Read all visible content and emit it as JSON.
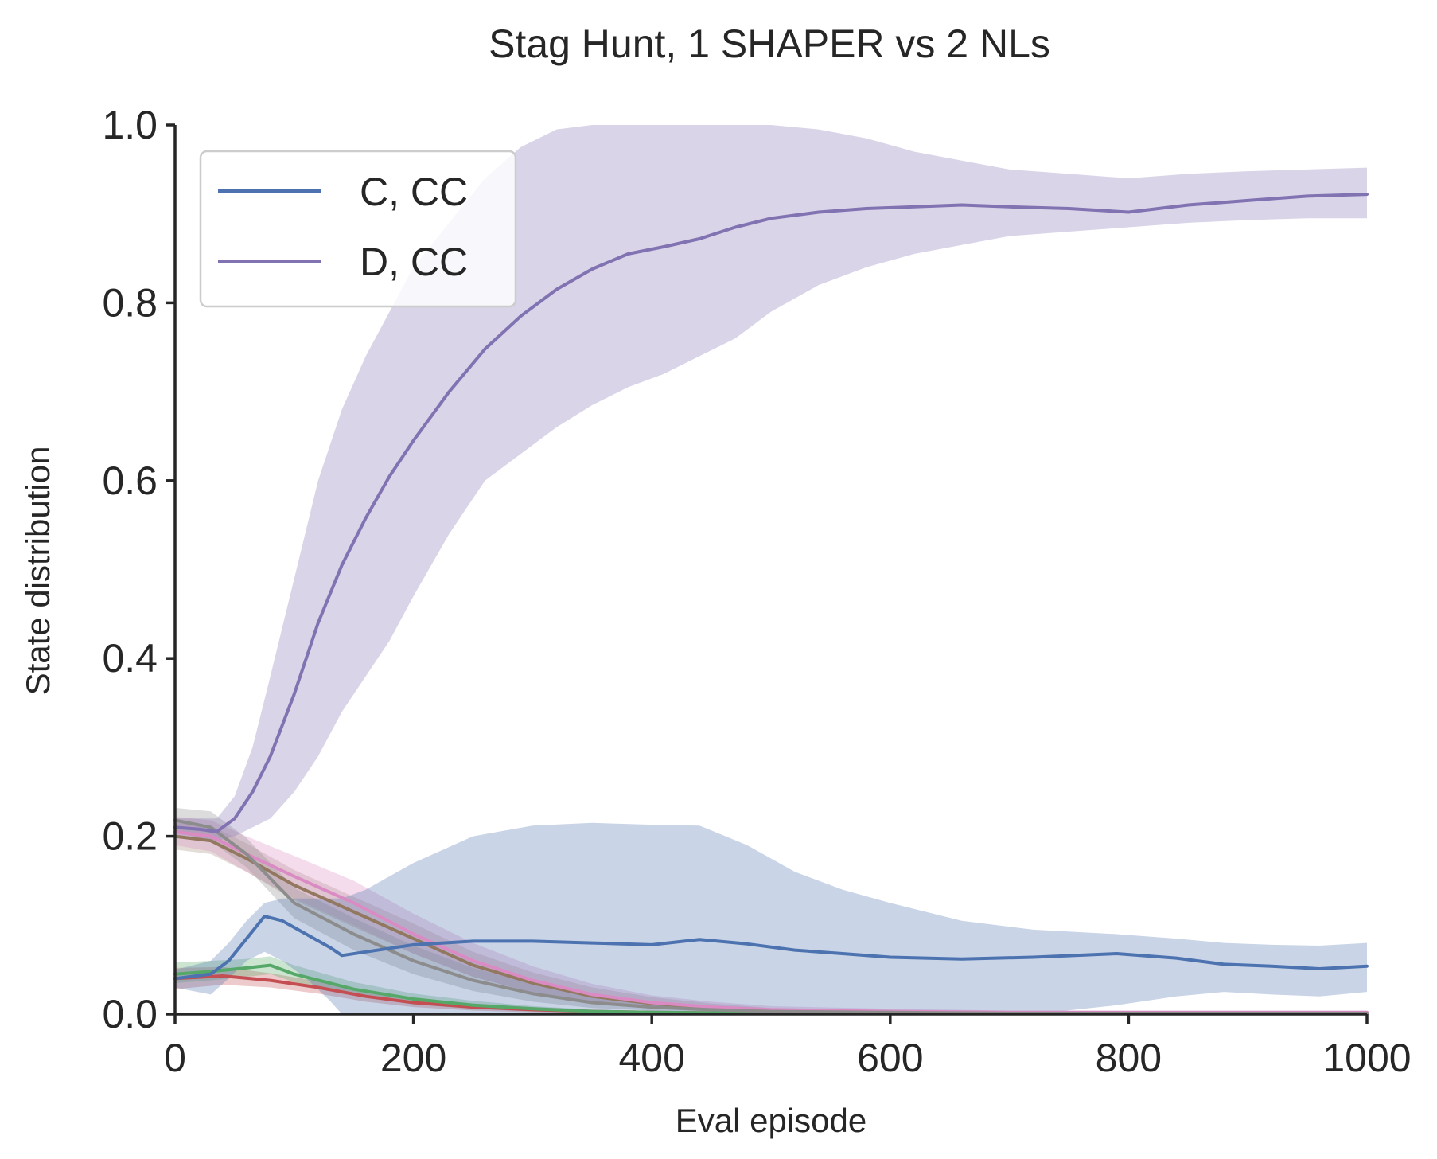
{
  "chart_data": {
    "type": "line",
    "title": "Stag Hunt, 1 SHAPER vs 2 NLs",
    "xlabel": "Eval episode",
    "ylabel": "State distribution",
    "xlim": [
      0,
      1000
    ],
    "ylim": [
      0,
      1.0
    ],
    "xticks": [
      "0",
      "200",
      "400",
      "600",
      "800",
      "1000"
    ],
    "yticks": [
      "0.0",
      "0.2",
      "0.4",
      "0.6",
      "0.8",
      "1.0"
    ],
    "grid": false,
    "legend": {
      "placement": "top-left",
      "entries": [
        {
          "label": "C, CC",
          "color": "#4c72b0"
        },
        {
          "label": "D, CC",
          "color": "#8172b2"
        }
      ]
    },
    "series": [
      {
        "name": "C, CC",
        "color": "#4c72b0",
        "band_opacity": 0.3,
        "x": [
          0,
          30,
          45,
          60,
          75,
          90,
          110,
          130,
          140,
          160,
          200,
          250,
          300,
          350,
          400,
          440,
          480,
          520,
          560,
          600,
          660,
          720,
          790,
          840,
          880,
          920,
          960,
          1000
        ],
        "y": [
          0.04,
          0.045,
          0.06,
          0.085,
          0.11,
          0.105,
          0.09,
          0.075,
          0.066,
          0.07,
          0.078,
          0.082,
          0.082,
          0.08,
          0.078,
          0.084,
          0.079,
          0.072,
          0.068,
          0.064,
          0.062,
          0.064,
          0.068,
          0.063,
          0.056,
          0.054,
          0.051,
          0.054
        ],
        "lower": [
          0.03,
          0.022,
          0.04,
          0.06,
          0.07,
          0.06,
          0.04,
          0.015,
          0.0,
          0.0,
          0.0,
          0.0,
          0.0,
          0.0,
          0.0,
          0.0,
          0.0,
          0.0,
          0.0,
          0.0,
          0.0,
          0.0,
          0.01,
          0.02,
          0.025,
          0.022,
          0.02,
          0.025
        ],
        "upper": [
          0.05,
          0.06,
          0.08,
          0.105,
          0.125,
          0.13,
          0.13,
          0.13,
          0.13,
          0.14,
          0.17,
          0.2,
          0.212,
          0.215,
          0.213,
          0.212,
          0.19,
          0.16,
          0.14,
          0.125,
          0.105,
          0.095,
          0.09,
          0.085,
          0.08,
          0.078,
          0.077,
          0.08
        ]
      },
      {
        "name": "D, CC",
        "color": "#8172b2",
        "band_opacity": 0.3,
        "x": [
          0,
          20,
          35,
          50,
          65,
          80,
          100,
          120,
          140,
          160,
          180,
          200,
          230,
          260,
          290,
          320,
          350,
          380,
          410,
          440,
          470,
          500,
          540,
          580,
          620,
          660,
          700,
          750,
          800,
          850,
          900,
          950,
          1000
        ],
        "y": [
          0.21,
          0.208,
          0.205,
          0.22,
          0.25,
          0.29,
          0.36,
          0.44,
          0.505,
          0.558,
          0.605,
          0.645,
          0.7,
          0.748,
          0.785,
          0.815,
          0.838,
          0.855,
          0.863,
          0.872,
          0.885,
          0.895,
          0.902,
          0.906,
          0.908,
          0.91,
          0.908,
          0.906,
          0.902,
          0.91,
          0.915,
          0.92,
          0.922
        ],
        "lower": [
          0.2,
          0.195,
          0.195,
          0.2,
          0.21,
          0.22,
          0.25,
          0.29,
          0.34,
          0.38,
          0.42,
          0.47,
          0.54,
          0.6,
          0.63,
          0.66,
          0.685,
          0.705,
          0.72,
          0.74,
          0.76,
          0.79,
          0.82,
          0.84,
          0.855,
          0.865,
          0.875,
          0.88,
          0.885,
          0.89,
          0.893,
          0.895,
          0.895
        ],
        "upper": [
          0.22,
          0.22,
          0.22,
          0.245,
          0.3,
          0.38,
          0.49,
          0.6,
          0.68,
          0.74,
          0.79,
          0.84,
          0.89,
          0.94,
          0.975,
          0.995,
          1.0,
          1.0,
          1.0,
          1.0,
          1.0,
          1.0,
          0.995,
          0.985,
          0.97,
          0.96,
          0.95,
          0.945,
          0.94,
          0.945,
          0.948,
          0.95,
          0.952
        ]
      },
      {
        "color": "#937860",
        "band_opacity": 0.25,
        "x": [
          0,
          30,
          60,
          100,
          150,
          200,
          250,
          300,
          350,
          400,
          450,
          500,
          600,
          700,
          800,
          900,
          1000
        ],
        "y": [
          0.2,
          0.195,
          0.175,
          0.145,
          0.115,
          0.085,
          0.055,
          0.035,
          0.02,
          0.012,
          0.007,
          0.004,
          0.002,
          0.001,
          0.001,
          0.001,
          0.001
        ],
        "lower": [
          0.185,
          0.18,
          0.16,
          0.128,
          0.098,
          0.068,
          0.042,
          0.024,
          0.012,
          0.006,
          0.003,
          0.001,
          0.0,
          0.0,
          0.0,
          0.0,
          0.0
        ],
        "upper": [
          0.215,
          0.212,
          0.192,
          0.162,
          0.132,
          0.102,
          0.07,
          0.047,
          0.03,
          0.019,
          0.012,
          0.007,
          0.004,
          0.002,
          0.002,
          0.002,
          0.002
        ]
      },
      {
        "color": "#da8bc3",
        "band_opacity": 0.3,
        "x": [
          0,
          30,
          60,
          100,
          150,
          200,
          250,
          300,
          350,
          400,
          450,
          500,
          600,
          700,
          800,
          900,
          1000
        ],
        "y": [
          0.205,
          0.2,
          0.18,
          0.155,
          0.125,
          0.09,
          0.06,
          0.038,
          0.022,
          0.013,
          0.008,
          0.005,
          0.003,
          0.002,
          0.002,
          0.002,
          0.002
        ],
        "lower": [
          0.19,
          0.183,
          0.16,
          0.13,
          0.1,
          0.068,
          0.042,
          0.024,
          0.012,
          0.006,
          0.003,
          0.001,
          0.0,
          0.0,
          0.0,
          0.0,
          0.0
        ],
        "upper": [
          0.222,
          0.218,
          0.2,
          0.178,
          0.15,
          0.113,
          0.08,
          0.054,
          0.034,
          0.021,
          0.014,
          0.009,
          0.006,
          0.004,
          0.004,
          0.004,
          0.004
        ]
      },
      {
        "color": "#8c8c8c",
        "band_opacity": 0.3,
        "x": [
          0,
          30,
          60,
          100,
          150,
          200,
          250,
          300,
          350,
          400,
          450,
          500,
          600,
          700,
          800,
          900,
          1000
        ],
        "y": [
          0.218,
          0.21,
          0.18,
          0.125,
          0.09,
          0.06,
          0.038,
          0.023,
          0.013,
          0.008,
          0.005,
          0.003,
          0.002,
          0.001,
          0.001,
          0.001,
          0.001
        ],
        "lower": [
          0.205,
          0.195,
          0.165,
          0.108,
          0.072,
          0.045,
          0.026,
          0.014,
          0.007,
          0.004,
          0.002,
          0.001,
          0.0,
          0.0,
          0.0,
          0.0,
          0.0
        ],
        "upper": [
          0.232,
          0.228,
          0.198,
          0.142,
          0.108,
          0.077,
          0.052,
          0.034,
          0.02,
          0.013,
          0.008,
          0.005,
          0.003,
          0.002,
          0.002,
          0.002,
          0.002
        ]
      },
      {
        "color": "#55a868",
        "band_opacity": 0.3,
        "x": [
          0,
          30,
          60,
          80,
          100,
          150,
          200,
          250,
          300,
          350,
          400,
          500,
          600,
          700,
          800,
          900,
          1000
        ],
        "y": [
          0.045,
          0.048,
          0.052,
          0.055,
          0.045,
          0.028,
          0.017,
          0.01,
          0.006,
          0.003,
          0.002,
          0.001,
          0.001,
          0.001,
          0.001,
          0.001,
          0.001
        ],
        "lower": [
          0.035,
          0.038,
          0.042,
          0.045,
          0.036,
          0.021,
          0.011,
          0.006,
          0.003,
          0.001,
          0.0,
          0.0,
          0.0,
          0.0,
          0.0,
          0.0,
          0.0
        ],
        "upper": [
          0.058,
          0.06,
          0.062,
          0.065,
          0.055,
          0.036,
          0.023,
          0.015,
          0.009,
          0.005,
          0.003,
          0.002,
          0.002,
          0.002,
          0.002,
          0.002,
          0.002
        ]
      },
      {
        "color": "#c44e52",
        "band_opacity": 0.3,
        "x": [
          0,
          40,
          80,
          120,
          160,
          200,
          250,
          300,
          350,
          400,
          500,
          600,
          700,
          800,
          900,
          1000
        ],
        "y": [
          0.04,
          0.043,
          0.038,
          0.03,
          0.02,
          0.013,
          0.008,
          0.005,
          0.003,
          0.002,
          0.001,
          0.001,
          0.001,
          0.001,
          0.001,
          0.001
        ],
        "lower": [
          0.028,
          0.033,
          0.03,
          0.023,
          0.014,
          0.008,
          0.004,
          0.002,
          0.001,
          0.0,
          0.0,
          0.0,
          0.0,
          0.0,
          0.0,
          0.0
        ],
        "upper": [
          0.052,
          0.053,
          0.046,
          0.037,
          0.026,
          0.018,
          0.012,
          0.008,
          0.005,
          0.003,
          0.002,
          0.002,
          0.002,
          0.002,
          0.002,
          0.002
        ]
      }
    ]
  }
}
